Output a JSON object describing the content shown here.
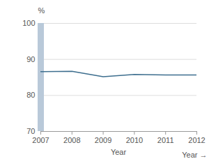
{
  "chart_data": {
    "type": "line",
    "x": [
      2007,
      2008,
      2009,
      2010,
      2011,
      2012
    ],
    "values": [
      86.6,
      86.7,
      85.2,
      85.8,
      85.7,
      85.7
    ],
    "color": "#3d6e8e",
    "xlabel": "Year",
    "ylabel": "%",
    "xlim": [
      2007,
      2012
    ],
    "xticks": [
      2007,
      2008,
      2009,
      2010,
      2011,
      2012
    ],
    "ylim": [
      70,
      100
    ],
    "yticks": [
      70,
      80,
      90,
      100
    ],
    "grid": true
  }
}
